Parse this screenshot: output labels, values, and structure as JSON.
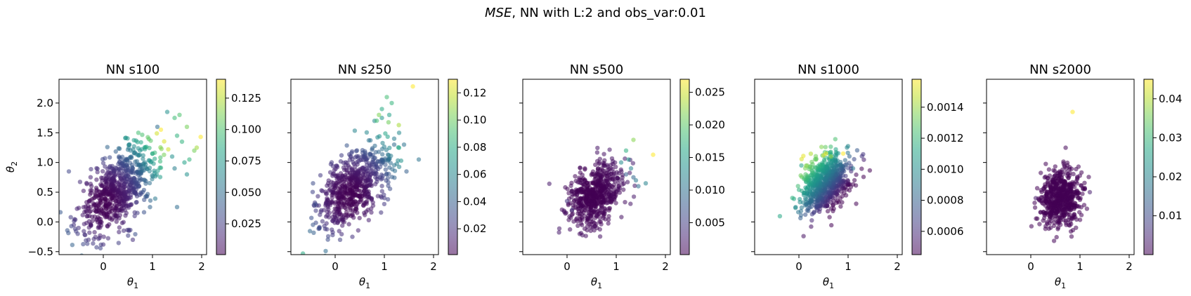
{
  "figure": {
    "suptitle_italic": "MSE",
    "suptitle_rest": ", NN with L:2 and obs_var:0.01"
  },
  "chart_data": [
    {
      "type": "scatter",
      "title": "NN s100",
      "xlabel": "θ1",
      "ylabel": "θ2",
      "xlim": [
        -0.9,
        2.1
      ],
      "ylim": [
        -0.55,
        2.4
      ],
      "xticks": [
        0,
        1,
        2
      ],
      "yticks": [
        -0.5,
        0.0,
        0.5,
        1.0,
        1.5,
        2.0
      ],
      "ytick_labels": [
        "−0.5",
        "0.0",
        "0.5",
        "1.0",
        "1.5",
        "2.0"
      ],
      "colorbar": {
        "min": 0.0005,
        "max": 0.14,
        "ticks": [
          0.025,
          0.05,
          0.075,
          0.1,
          0.125
        ],
        "tick_labels": [
          "0.025",
          "0.050",
          "0.075",
          "0.100",
          "0.125"
        ]
      },
      "cloud": {
        "cx": 0.3,
        "cy": 0.55,
        "sx": 0.4,
        "sy": 0.38,
        "rho": 0.6,
        "n": 700
      },
      "color_rule": {
        "kind": "radial",
        "cx": 0.0,
        "cy": 0.3,
        "scale": 0.05,
        "power": 2
      },
      "points": [
        [
          1.98,
          1.43,
          0.14
        ],
        [
          1.9,
          1.25,
          0.12
        ],
        [
          1.85,
          1.2,
          0.11
        ],
        [
          1.7,
          1.6,
          0.11
        ],
        [
          1.55,
          1.8,
          0.1
        ],
        [
          1.45,
          1.75,
          0.095
        ],
        [
          1.6,
          1.35,
          0.09
        ],
        [
          1.75,
          1.05,
          0.09
        ],
        [
          1.3,
          1.85,
          0.07
        ],
        [
          1.5,
          1.45,
          0.09
        ],
        [
          1.65,
          1.0,
          0.08
        ],
        [
          1.4,
          1.1,
          0.07
        ],
        [
          1.45,
          0.9,
          0.06
        ],
        [
          1.5,
          0.25,
          0.05
        ],
        [
          1.7,
          0.8,
          0.07
        ],
        [
          1.1,
          1.6,
          0.05
        ],
        [
          0.6,
          -0.3,
          0.02
        ],
        [
          0.0,
          -0.38,
          0.02
        ],
        [
          -0.7,
          0.85,
          0.03
        ],
        [
          -0.6,
          -0.05,
          0.02
        ],
        [
          -0.3,
          -0.3,
          0.02
        ]
      ]
    },
    {
      "type": "scatter",
      "title": "NN s250",
      "xlabel": "θ1",
      "xlim": [
        -0.9,
        2.1
      ],
      "ylim": [
        -0.55,
        2.4
      ],
      "xticks": [
        0,
        1,
        2
      ],
      "yticks": [
        -0.5,
        0.0,
        0.5,
        1.0,
        1.5,
        2.0
      ],
      "colorbar": {
        "min": 0.001,
        "max": 0.13,
        "ticks": [
          0.02,
          0.04,
          0.06,
          0.08,
          0.1,
          0.12
        ],
        "tick_labels": [
          "0.02",
          "0.04",
          "0.06",
          "0.08",
          "0.10",
          "0.12"
        ]
      },
      "cloud": {
        "cx": 0.4,
        "cy": 0.6,
        "sx": 0.37,
        "sy": 0.35,
        "rho": 0.55,
        "n": 650
      },
      "color_rule": {
        "kind": "radial",
        "cx": 0.3,
        "cy": 0.4,
        "scale": 0.045,
        "power": 2
      },
      "points": [
        [
          1.58,
          2.28,
          0.13
        ],
        [
          1.05,
          2.1,
          0.09
        ],
        [
          1.15,
          2.0,
          0.085
        ],
        [
          0.95,
          1.9,
          0.08
        ],
        [
          1.1,
          1.8,
          0.075
        ],
        [
          0.95,
          1.75,
          0.07
        ],
        [
          0.8,
          1.7,
          0.06
        ],
        [
          1.3,
          1.5,
          0.06
        ],
        [
          1.2,
          1.4,
          0.055
        ],
        [
          1.4,
          1.3,
          0.05
        ],
        [
          1.7,
          1.05,
          0.05
        ],
        [
          1.2,
          1.3,
          0.045
        ],
        [
          1.45,
          0.85,
          0.04
        ],
        [
          -0.45,
          0.65,
          0.03
        ],
        [
          -0.4,
          0.3,
          0.03
        ],
        [
          0.1,
          -0.3,
          0.025
        ],
        [
          0.35,
          -0.25,
          0.02
        ]
      ]
    },
    {
      "type": "scatter",
      "title": "NN s500",
      "xlabel": "θ1",
      "xlim": [
        -0.9,
        2.1
      ],
      "ylim": [
        -0.55,
        2.4
      ],
      "xticks": [
        0,
        1,
        2
      ],
      "yticks": [
        -0.5,
        0.0,
        0.5,
        1.0,
        1.5,
        2.0
      ],
      "colorbar": {
        "min": 0.0001,
        "max": 0.027,
        "ticks": [
          0.005,
          0.01,
          0.015,
          0.02,
          0.025
        ],
        "tick_labels": [
          "0.005",
          "0.010",
          "0.015",
          "0.020",
          "0.025"
        ]
      },
      "cloud": {
        "cx": 0.55,
        "cy": 0.45,
        "sx": 0.28,
        "sy": 0.27,
        "rho": 0.3,
        "n": 600
      },
      "color_rule": {
        "kind": "radial",
        "cx": 0.5,
        "cy": 0.45,
        "scale": 0.0025,
        "power": 2
      },
      "points": [
        [
          1.75,
          1.13,
          0.027
        ],
        [
          1.35,
          1.38,
          0.022
        ],
        [
          1.2,
          1.2,
          0.017
        ],
        [
          1.1,
          1.0,
          0.013
        ],
        [
          1.25,
          1.05,
          0.014
        ],
        [
          1.3,
          0.9,
          0.012
        ],
        [
          1.4,
          0.7,
          0.011
        ],
        [
          1.6,
          0.65,
          0.012
        ],
        [
          1.45,
          0.6,
          0.01
        ],
        [
          1.2,
          0.8,
          0.008
        ],
        [
          1.35,
          0.75,
          0.009
        ],
        [
          0.0,
          0.35,
          0.004
        ],
        [
          0.1,
          0.2,
          0.004
        ]
      ]
    },
    {
      "type": "scatter",
      "title": "NN s1000",
      "xlabel": "θ1",
      "xlim": [
        -0.9,
        2.1
      ],
      "ylim": [
        -0.55,
        2.4
      ],
      "xticks": [
        0,
        1,
        2
      ],
      "yticks": [
        -0.5,
        0.0,
        0.5,
        1.0,
        1.5,
        2.0
      ],
      "colorbar": {
        "min": 0.00045,
        "max": 0.00158,
        "ticks": [
          0.0006,
          0.0008,
          0.001,
          0.0012,
          0.0014
        ],
        "tick_labels": [
          "0.0006",
          "0.0008",
          "0.0010",
          "0.0012",
          "0.0014"
        ]
      },
      "cloud": {
        "cx": 0.55,
        "cy": 0.65,
        "sx": 0.25,
        "sy": 0.25,
        "rho": 0.35,
        "n": 700
      },
      "color_rule": {
        "kind": "linear",
        "ax": -1.1,
        "ay": 0.75,
        "c0": 0.91,
        "scale": 0.00115
      },
      "points": [
        [
          0.9,
          1.15,
          0.00158
        ],
        [
          0.55,
          1.15,
          0.00155
        ],
        [
          0.5,
          1.12,
          0.0015
        ],
        [
          0.65,
          1.1,
          0.0014
        ],
        [
          0.35,
          1.05,
          0.0013
        ],
        [
          1.1,
          0.9,
          0.0009
        ],
        [
          0.05,
          0.95,
          0.0011
        ],
        [
          0.15,
          0.3,
          0.0007
        ]
      ]
    },
    {
      "type": "scatter",
      "title": "NN s2000",
      "xlabel": "θ1",
      "xlim": [
        -0.9,
        2.1
      ],
      "ylim": [
        -0.55,
        2.4
      ],
      "xticks": [
        0,
        1,
        2
      ],
      "yticks": [
        -0.5,
        0.0,
        0.5,
        1.0,
        1.5,
        2.0
      ],
      "colorbar": {
        "min": 5e-05,
        "max": 0.045,
        "ticks": [
          0.01,
          0.02,
          0.03,
          0.04
        ],
        "tick_labels": [
          "0.01",
          "0.02",
          "0.03",
          "0.04"
        ]
      },
      "cloud": {
        "cx": 0.6,
        "cy": 0.4,
        "sx": 0.22,
        "sy": 0.25,
        "rho": 0.15,
        "n": 600
      },
      "color_rule": {
        "kind": "radial",
        "cx": 0.6,
        "cy": 0.4,
        "scale": 0.0008,
        "power": 2
      },
      "points": [
        [
          0.85,
          1.85,
          0.045
        ],
        [
          1.2,
          0.5,
          0.004
        ],
        [
          0.1,
          0.4,
          0.003
        ]
      ]
    }
  ]
}
